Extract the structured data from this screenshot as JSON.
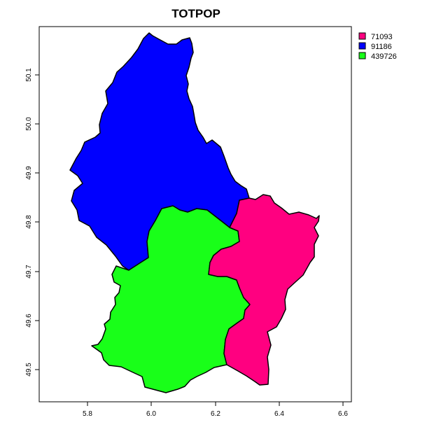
{
  "title": "TOTPOP",
  "chart_data": {
    "type": "choropleth",
    "title": "TOTPOP",
    "xlim": [
      5.65,
      6.63
    ],
    "ylim": [
      49.43,
      50.2
    ],
    "x_ticks": [
      "5.8",
      "6.0",
      "6.2",
      "6.4",
      "6.6"
    ],
    "y_ticks": [
      "49.5",
      "49.6",
      "49.7",
      "49.8",
      "49.9",
      "50.0",
      "50.1"
    ],
    "grid": false,
    "legend_position": "top-right",
    "regions": [
      {
        "label": "91186",
        "value": 91186,
        "color": "#0000ff"
      },
      {
        "label": "439726",
        "value": 439726,
        "color": "#19ff19"
      },
      {
        "label": "71093",
        "value": 71093,
        "color": "#ff0080"
      }
    ],
    "legend": [
      {
        "label": "71093",
        "color": "#ff0080"
      },
      {
        "label": "91186",
        "color": "#0000ff"
      },
      {
        "label": "439726",
        "color": "#19ff19"
      }
    ]
  }
}
